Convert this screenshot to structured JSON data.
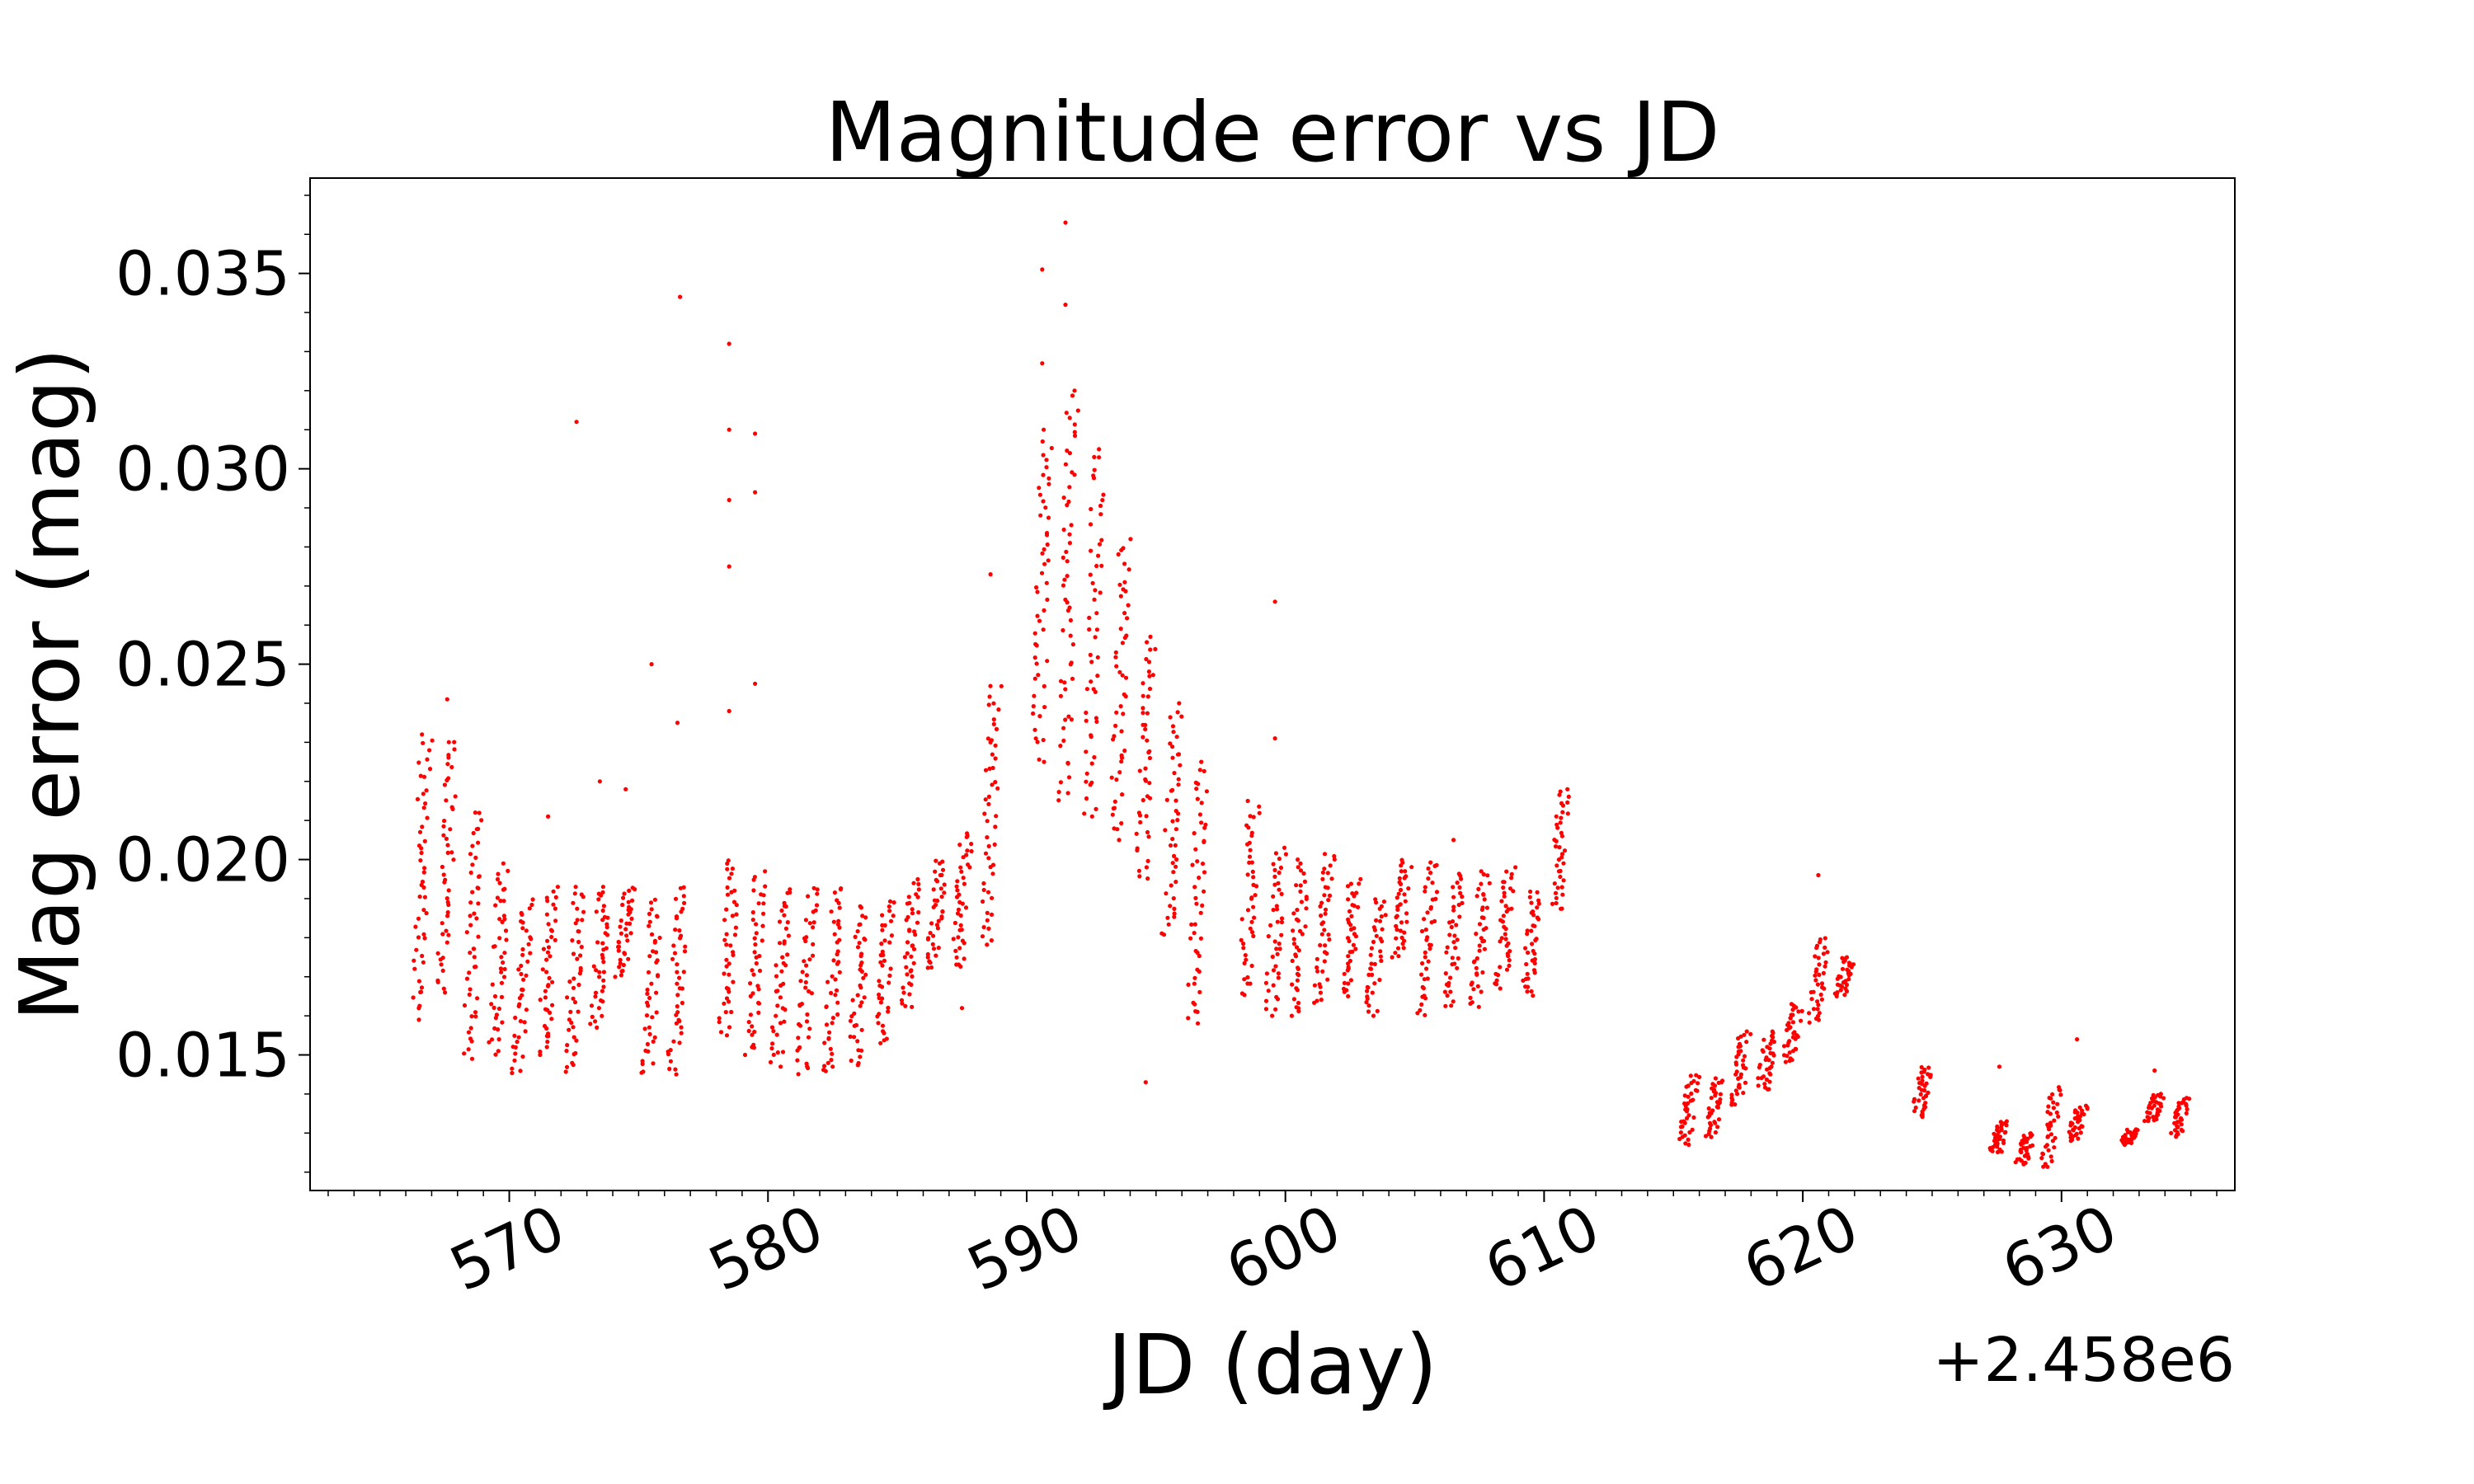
{
  "chart_data": {
    "type": "scatter",
    "title": "Magnitude error vs JD",
    "xlabel": "JD (day)",
    "ylabel": "Mag error (mag)",
    "x_offset_label": "+2.458e6",
    "x_offset": 2458000,
    "xlim": [
      562.3,
      636.7
    ],
    "ylim": [
      0.01153,
      0.03744
    ],
    "x_ticks": [
      570,
      580,
      590,
      600,
      610,
      620,
      630
    ],
    "x_tick_labels": [
      "570",
      "580",
      "590",
      "600",
      "610",
      "620",
      "630"
    ],
    "y_ticks": [
      0.015,
      0.02,
      0.025,
      0.03,
      0.035
    ],
    "y_tick_labels": [
      "0.015",
      "0.020",
      "0.025",
      "0.030",
      "0.035"
    ],
    "grid": false,
    "marker_color": "#ff0000",
    "nights": [
      [
        566.6,
        0.0159,
        0.0232
      ],
      [
        567.6,
        0.0165,
        0.0231
      ],
      [
        568.6,
        0.0149,
        0.0213
      ],
      [
        569.6,
        0.015,
        0.0199
      ],
      [
        570.5,
        0.0145,
        0.019
      ],
      [
        571.5,
        0.015,
        0.0193
      ],
      [
        572.5,
        0.0145,
        0.0193
      ],
      [
        573.5,
        0.0157,
        0.0193
      ],
      [
        574.5,
        0.017,
        0.0193
      ],
      [
        575.5,
        0.0145,
        0.019
      ],
      [
        576.5,
        0.0145,
        0.0193
      ],
      [
        578.5,
        0.0155,
        0.02
      ],
      [
        579.5,
        0.015,
        0.0197
      ],
      [
        580.5,
        0.0147,
        0.0193
      ],
      [
        581.5,
        0.0145,
        0.0193
      ],
      [
        582.5,
        0.0145,
        0.0193
      ],
      [
        583.5,
        0.0147,
        0.0188
      ],
      [
        584.5,
        0.0153,
        0.019
      ],
      [
        585.5,
        0.0162,
        0.0195
      ],
      [
        586.5,
        0.0172,
        0.02
      ],
      [
        587.5,
        0.0172,
        0.0207
      ],
      [
        588.6,
        0.0177,
        0.0245
      ],
      [
        590.6,
        0.0225,
        0.031
      ],
      [
        591.6,
        0.0215,
        0.032
      ],
      [
        592.6,
        0.021,
        0.0305
      ],
      [
        593.6,
        0.0205,
        0.0282
      ],
      [
        594.6,
        0.0195,
        0.0257
      ],
      [
        595.6,
        0.018,
        0.024
      ],
      [
        596.6,
        0.0157,
        0.0225
      ],
      [
        598.6,
        0.0165,
        0.0215
      ],
      [
        599.6,
        0.016,
        0.0203
      ],
      [
        600.5,
        0.016,
        0.02
      ],
      [
        601.5,
        0.0163,
        0.0202
      ],
      [
        602.5,
        0.0165,
        0.0195
      ],
      [
        603.5,
        0.016,
        0.019
      ],
      [
        604.5,
        0.0175,
        0.02
      ],
      [
        605.5,
        0.016,
        0.02
      ],
      [
        606.5,
        0.0162,
        0.0197
      ],
      [
        607.5,
        0.0162,
        0.0197
      ],
      [
        608.5,
        0.0167,
        0.0198
      ],
      [
        609.5,
        0.0165,
        0.0192
      ],
      [
        610.6,
        0.0187,
        0.0218
      ],
      [
        615.6,
        0.0127,
        0.0145
      ],
      [
        616.6,
        0.0129,
        0.0144
      ],
      [
        617.6,
        0.0137,
        0.0156
      ],
      [
        618.6,
        0.0141,
        0.0156
      ],
      [
        619.6,
        0.0148,
        0.0163
      ],
      [
        620.6,
        0.0158,
        0.018
      ],
      [
        621.6,
        0.0165,
        0.0175
      ],
      [
        624.6,
        0.0134,
        0.0147
      ],
      [
        627.6,
        0.0125,
        0.0133
      ],
      [
        628.6,
        0.0122,
        0.013
      ],
      [
        629.6,
        0.0121,
        0.0142
      ],
      [
        630.6,
        0.0128,
        0.0137
      ],
      [
        632.6,
        0.0127,
        0.0131
      ],
      [
        633.6,
        0.0133,
        0.014
      ],
      [
        634.6,
        0.0129,
        0.0139
      ]
    ],
    "outliers": [
      [
        572.6,
        0.0312
      ],
      [
        576.6,
        0.0344
      ],
      [
        578.5,
        0.0332
      ],
      [
        578.5,
        0.031
      ],
      [
        578.5,
        0.0292
      ],
      [
        578.5,
        0.0275
      ],
      [
        579.5,
        0.0309
      ],
      [
        579.5,
        0.0294
      ],
      [
        579.5,
        0.0245
      ],
      [
        575.5,
        0.025
      ],
      [
        576.5,
        0.0235
      ],
      [
        578.5,
        0.0238
      ],
      [
        567.6,
        0.0241
      ],
      [
        571.5,
        0.0211
      ],
      [
        573.5,
        0.022
      ],
      [
        574.5,
        0.0218
      ],
      [
        588.6,
        0.0273
      ],
      [
        591.5,
        0.0363
      ],
      [
        591.5,
        0.0342
      ],
      [
        590.6,
        0.0351
      ],
      [
        590.6,
        0.0327
      ],
      [
        594.6,
        0.0143
      ],
      [
        599.6,
        0.0266
      ],
      [
        599.6,
        0.0231
      ],
      [
        606.5,
        0.0205
      ],
      [
        620.6,
        0.0196
      ],
      [
        627.6,
        0.0147
      ],
      [
        630.6,
        0.0154
      ],
      [
        633.6,
        0.0146
      ],
      [
        587.5,
        0.0162
      ],
      [
        582.5,
        0.0147
      ],
      [
        588.6,
        0.023
      ]
    ]
  }
}
